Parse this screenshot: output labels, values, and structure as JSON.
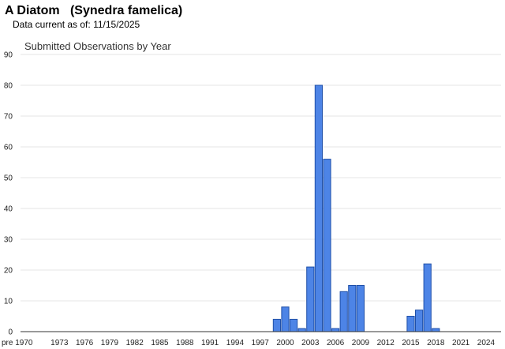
{
  "page": {
    "species_title": "A Diatom   (Synedra famelica)",
    "data_current_label": "Data current as of:",
    "data_current_date": "11/15/2025"
  },
  "colors": {
    "bar_fill": "#4d84e6",
    "bar_stroke": "#1f4fa8",
    "grid": "#e4e4e4",
    "baseline": "#333333"
  },
  "chart_data": {
    "type": "bar",
    "title": "Submitted Observations by Year",
    "xlabel": "",
    "ylabel": "",
    "ylim": [
      0,
      90
    ],
    "yticks": [
      0,
      10,
      20,
      30,
      40,
      50,
      60,
      70,
      80,
      90
    ],
    "grid": true,
    "legend": "none",
    "categories": [
      "pre 1970",
      "1970",
      "1971",
      "1972",
      "1973",
      "1974",
      "1975",
      "1976",
      "1977",
      "1978",
      "1979",
      "1980",
      "1981",
      "1982",
      "1983",
      "1984",
      "1985",
      "1986",
      "1987",
      "1988",
      "1989",
      "1990",
      "1991",
      "1992",
      "1993",
      "1994",
      "1995",
      "1996",
      "1997",
      "1998",
      "1999",
      "2000",
      "2001",
      "2002",
      "2003",
      "2004",
      "2005",
      "2006",
      "2007",
      "2008",
      "2009",
      "2010",
      "2011",
      "2012",
      "2013",
      "2014",
      "2015",
      "2016",
      "2017",
      "2018",
      "2019",
      "2020",
      "2021",
      "2022",
      "2023",
      "2024",
      "2025"
    ],
    "tick_labels": [
      "pre 1970",
      "1973",
      "1976",
      "1979",
      "1982",
      "1985",
      "1988",
      "1991",
      "1994",
      "1997",
      "2000",
      "2003",
      "2006",
      "2009",
      "2012",
      "2015",
      "2018",
      "2021",
      "2024"
    ],
    "values": [
      0,
      0,
      0,
      0,
      0,
      0,
      0,
      0,
      0,
      0,
      0,
      0,
      0,
      0,
      0,
      0,
      0,
      0,
      0,
      0,
      0,
      0,
      0,
      0,
      0,
      0,
      0,
      0,
      0,
      0,
      4,
      8,
      4,
      1,
      21,
      80,
      56,
      1,
      13,
      15,
      15,
      0,
      0,
      0,
      0,
      0,
      5,
      7,
      22,
      1,
      0,
      0,
      0,
      0,
      0,
      0,
      0
    ]
  }
}
